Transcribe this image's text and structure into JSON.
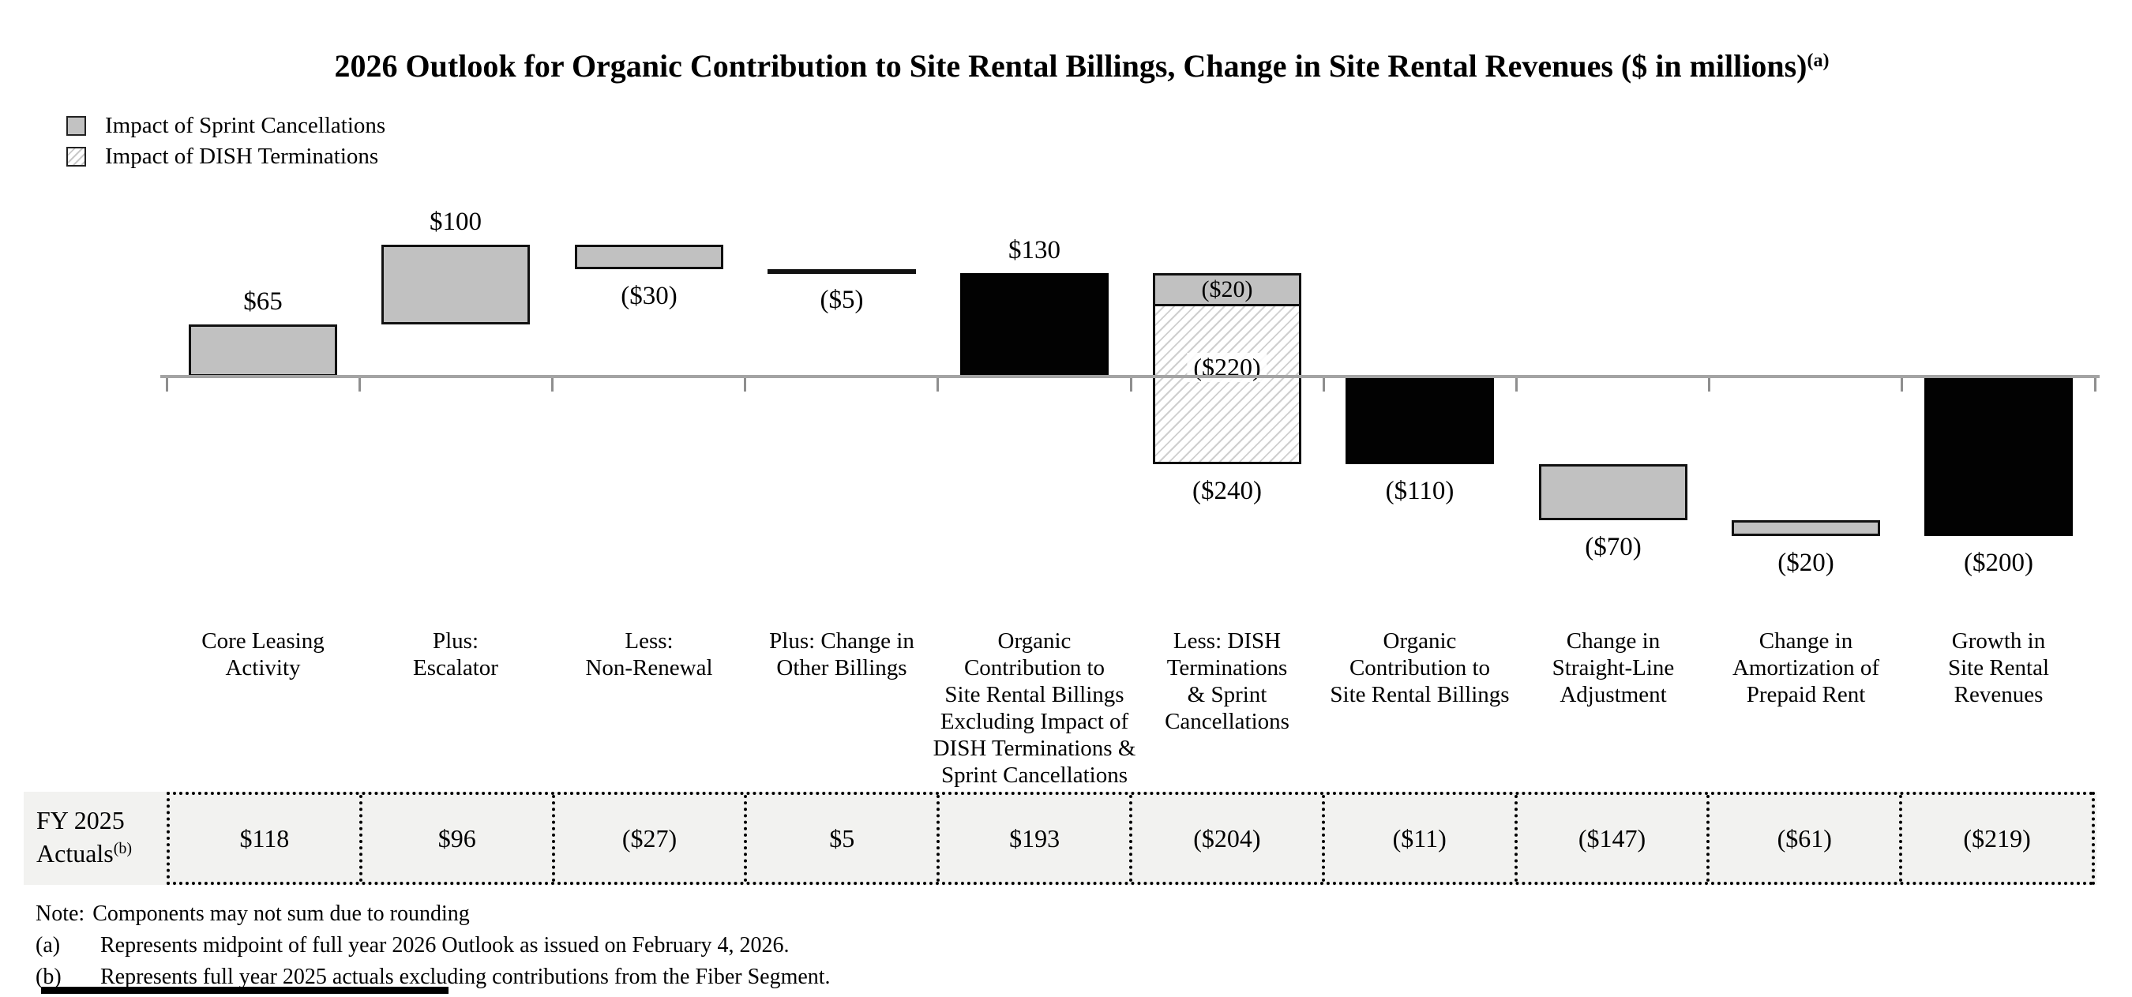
{
  "title": {
    "text": "2026 Outlook for Organic Contribution to Site Rental Billings, Change in Site Rental Revenues ($ in millions)",
    "superscript": "(a)"
  },
  "legend": [
    {
      "swatch": "gray",
      "label": "Impact of Sprint Cancellations"
    },
    {
      "swatch": "hatch",
      "label": "Impact of DISH Terminations"
    }
  ],
  "chart_data": {
    "type": "bar",
    "subtype": "waterfall",
    "unit": "$ in millions",
    "baseline_value": 0,
    "value_range": [
      -240,
      165
    ],
    "axis": {
      "style": "baseline-only",
      "ticks": "category-boundaries"
    },
    "categories": [
      "Core Leasing\nActivity",
      "Plus:\nEscalator",
      "Less:\nNon-Renewal",
      "Plus: Change in\nOther Billings",
      "Organic\nContribution to\nSite Rental Billings\nExcluding Impact of\nDISH Terminations &\nSprint Cancellations",
      "Less: DISH\nTerminations\n& Sprint\nCancellations",
      "Organic\nContribution to\nSite Rental Billings",
      "Change in\nStraight-Line\nAdjustment",
      "Change in\nAmortization of\nPrepaid Rent",
      "Growth in\nSite Rental\nRevenues"
    ],
    "bars": [
      {
        "value": 65,
        "label": "$65",
        "style": "gray",
        "from": 0,
        "to": 65,
        "label_position": "above"
      },
      {
        "value": 100,
        "label": "$100",
        "style": "gray",
        "from": 65,
        "to": 165,
        "label_position": "above"
      },
      {
        "value": -30,
        "label": "($30)",
        "style": "gray",
        "from": 165,
        "to": 135,
        "label_position": "below"
      },
      {
        "value": -5,
        "label": "($5)",
        "style": "gray",
        "from": 135,
        "to": 130,
        "label_position": "below"
      },
      {
        "value": 130,
        "label": "$130",
        "style": "black",
        "from": 0,
        "to": 130,
        "label_position": "above",
        "is_total": true
      },
      {
        "value": -240,
        "label": "($240)",
        "style": "stacked",
        "from": 130,
        "to": -110,
        "label_position": "below",
        "segments": [
          {
            "label": "($20)",
            "value": -20,
            "pattern": "gray"
          },
          {
            "label": "($220)",
            "value": -220,
            "pattern": "hatch"
          }
        ]
      },
      {
        "value": -110,
        "label": "($110)",
        "style": "black",
        "from": 0,
        "to": -110,
        "label_position": "below",
        "is_total": true
      },
      {
        "value": -70,
        "label": "($70)",
        "style": "gray",
        "from": -110,
        "to": -180,
        "label_position": "below"
      },
      {
        "value": -20,
        "label": "($20)",
        "style": "gray",
        "from": -180,
        "to": -200,
        "label_position": "below"
      },
      {
        "value": -200,
        "label": "($200)",
        "style": "black",
        "from": 0,
        "to": -200,
        "label_position": "below",
        "is_total": true
      }
    ]
  },
  "table": {
    "header_line1": "FY 2025",
    "header_line2": "Actuals",
    "header_superscript": "(b)",
    "values": [
      "$118",
      "$96",
      "($27)",
      "$5",
      "$193",
      "($204)",
      "($11)",
      "($147)",
      "($61)",
      "($219)"
    ]
  },
  "footnotes": [
    {
      "prefix": "Note:",
      "text": "Components may not sum due to rounding"
    },
    {
      "prefix": "(a)",
      "text": "Represents midpoint of full year 2026 Outlook as issued on February 4, 2026."
    },
    {
      "prefix": "(b)",
      "text": "Represents full year 2025 actuals excluding contributions from the Fiber Segment."
    }
  ],
  "colors": {
    "bar_gray": "#c1c1c1",
    "bar_black": "#020202",
    "axis_gray": "#a4a4a4",
    "table_background": "#f2f2f0"
  }
}
